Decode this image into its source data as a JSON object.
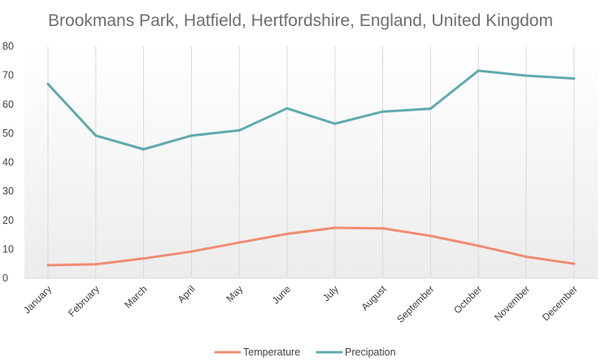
{
  "chart_data": {
    "type": "line",
    "title": "Brookmans Park, Hatfield, Hertfordshire, England, United Kingdom",
    "xlabel": "",
    "ylabel": "",
    "categories": [
      "January",
      "February",
      "March",
      "April",
      "May",
      "June",
      "July",
      "August",
      "September",
      "October",
      "November",
      "December"
    ],
    "ylim": [
      0,
      80
    ],
    "yticks": [
      0,
      10,
      20,
      30,
      40,
      50,
      60,
      70,
      80
    ],
    "grid": "vertical",
    "legend_position": "bottom",
    "series": [
      {
        "name": "Temperature",
        "color": "#f08c72",
        "values": [
          4.5,
          4.8,
          6.8,
          9.2,
          12.3,
          15.3,
          17.4,
          17.2,
          14.6,
          11.2,
          7.4,
          5.0
        ]
      },
      {
        "name": "Precipation",
        "color": "#5eaaaf",
        "values": [
          67.0,
          49.2,
          44.5,
          49.2,
          51.0,
          58.6,
          53.3,
          57.5,
          58.5,
          71.6,
          69.9,
          68.9
        ]
      }
    ]
  }
}
